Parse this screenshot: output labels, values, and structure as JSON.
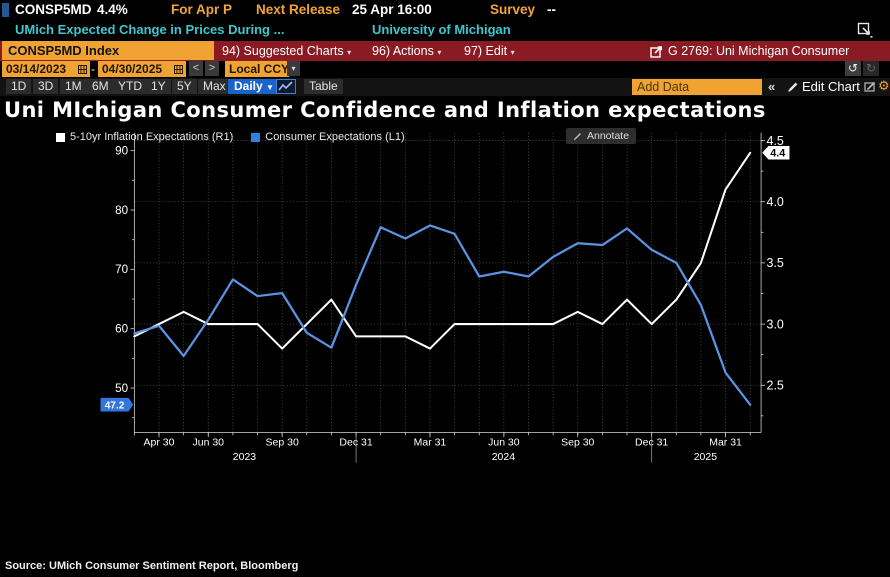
{
  "topbar": {
    "ticker": "CONSP5MD",
    "last_value": "4.4%",
    "period": "For Apr P",
    "next_release_label": "Next Release",
    "next_release_value": "25 Apr 16:00",
    "survey_label": "Survey",
    "survey_value": "--",
    "description": "UMich Expected Change in Prices During ...",
    "source_org": "University of Michigan"
  },
  "menubar": {
    "security_field": "CONSP5MD Index",
    "items": [
      {
        "label": "94) Suggested Charts"
      },
      {
        "label": "96) Actions"
      },
      {
        "label": "97) Edit"
      }
    ],
    "chart_ref": "G 2769: Uni Michigan Consumer"
  },
  "toolbar": {
    "date_from": "03/14/2023",
    "date_to": "04/30/2025",
    "range_separator": "-",
    "prev_glyph": "<",
    "next_glyph": ">",
    "currency": "Local CCY",
    "ranges": [
      "1D",
      "3D",
      "1M",
      "6M",
      "YTD",
      "1Y",
      "5Y",
      "Max"
    ],
    "frequency": "Daily",
    "table_label": "Table",
    "add_data_placeholder": "Add Data",
    "collapse_glyph": "«",
    "edit_chart_label": "Edit Chart",
    "undo_glyph": "↺",
    "redo_glyph": "↻",
    "gear_glyph": "⚙",
    "colors": {
      "amber": "#f0a232",
      "menu_red": "#8a1b23",
      "accent_blue": "#1b63cc"
    }
  },
  "chart": {
    "title": "Uni MIchigan Consumer Confidence and Inflation expectations",
    "annotate_label": "Annotate",
    "legend": [
      {
        "label": "5-10yr Inflation Expectations (R1)",
        "color": "#ffffff"
      },
      {
        "label": "Consumer Expectations (L1)",
        "color": "#2f7fe0"
      }
    ]
  },
  "chart_data": {
    "type": "line",
    "title": "Uni MIchigan Consumer Confidence and Inflation expectations",
    "x": [
      "Mar 2023",
      "Apr 2023",
      "May 2023",
      "Jun 2023",
      "Jul 2023",
      "Aug 2023",
      "Sep 2023",
      "Oct 2023",
      "Nov 2023",
      "Dec 2023",
      "Jan 2024",
      "Feb 2024",
      "Mar 2024",
      "Apr 2024",
      "May 2024",
      "Jun 2024",
      "Jul 2024",
      "Aug 2024",
      "Sep 2024",
      "Oct 2024",
      "Nov 2024",
      "Dec 2024",
      "Jan 2025",
      "Feb 2025",
      "Mar 2025",
      "Apr 2025"
    ],
    "series": [
      {
        "name": "5-10yr Inflation Expectations (R1)",
        "axis": "right",
        "color": "#ffffff",
        "values": [
          2.9,
          3.0,
          3.1,
          3.0,
          3.0,
          3.0,
          2.8,
          3.0,
          3.2,
          2.9,
          2.9,
          2.9,
          2.8,
          3.0,
          3.0,
          3.0,
          3.0,
          3.0,
          3.1,
          3.0,
          3.2,
          3.0,
          3.2,
          3.5,
          4.1,
          4.4
        ]
      },
      {
        "name": "Consumer Expectations (L1)",
        "axis": "left",
        "color": "#5b93e1",
        "values": [
          59.2,
          60.5,
          55.4,
          61.5,
          68.3,
          65.5,
          66.0,
          59.3,
          56.8,
          67.4,
          77.1,
          75.2,
          77.4,
          76.0,
          68.8,
          69.6,
          68.8,
          72.1,
          74.4,
          74.1,
          76.9,
          73.3,
          71.1,
          64.0,
          52.6,
          47.2
        ]
      }
    ],
    "left_axis": {
      "id": "L1",
      "ticks": [
        90,
        80,
        70,
        60,
        50
      ],
      "minor_ticks": [
        85,
        75,
        65,
        55,
        45
      ],
      "last_value": 47.2,
      "badge_color": "#3277dd"
    },
    "right_axis": {
      "id": "R1",
      "ticks": [
        4.5,
        4.0,
        3.5,
        3.0,
        2.5
      ],
      "minor_ticks": [
        4.25,
        3.75,
        3.25,
        2.75,
        2.25
      ],
      "last_value": 4.4,
      "badge_color": "#ffffff"
    },
    "x_ticks": [
      {
        "index": 1,
        "label": "Apr 30"
      },
      {
        "index": 3,
        "label": "Jun 30"
      },
      {
        "index": 6,
        "label": "Sep 30"
      },
      {
        "index": 9,
        "label": "Dec 31"
      },
      {
        "index": 12,
        "label": "Mar 31"
      },
      {
        "index": 15,
        "label": "Jun 30"
      },
      {
        "index": 18,
        "label": "Sep 30"
      },
      {
        "index": 21,
        "label": "Dec 31"
      },
      {
        "index": 24,
        "label": "Mar 31"
      }
    ],
    "year_labels": [
      {
        "label": "2023",
        "center_index": 4.47
      },
      {
        "label": "2024",
        "center_index": 14.98
      },
      {
        "label": "2025",
        "center_index": 23.18
      }
    ],
    "year_separator_indices": [
      9,
      21
    ],
    "grid": true,
    "legend_position": "top-left",
    "gridline_color": "#4a4a4a"
  },
  "source_line": "Source: UMich Consumer Sentiment Report, Bloomberg"
}
